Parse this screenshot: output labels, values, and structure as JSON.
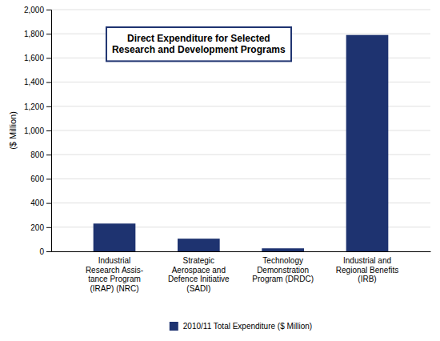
{
  "chart_data": {
    "type": "bar",
    "title": "Direct Expenditure for Selected\nResearch and Development Programs",
    "y_label": "($ Million)",
    "categories": [
      "Industrial\nResearch Assis-\ntance Program\n(IRAP) (NRC)",
      "Strategic\nAerospace and\nDefence Initiative\n(SADI)",
      "Technology\nDemonstration\nProgram (DRDC)",
      "Industrial and\nRegional Benefits\n(IRB)"
    ],
    "series": [
      {
        "name": "2010/11 Total Expenditure ($ Million)",
        "color": "#1e3370",
        "values": [
          230,
          105,
          25,
          1790
        ]
      }
    ],
    "ylim": [
      0,
      2000
    ],
    "yticks": [
      0,
      200,
      400,
      600,
      800,
      {
        "value": 1000,
        "label": "1,000"
      },
      {
        "value": 1200,
        "label": "1,200"
      },
      {
        "value": 1400,
        "label": "1,400"
      },
      {
        "value": 1600,
        "label": "1,600"
      },
      {
        "value": 1800,
        "label": "1,800"
      },
      {
        "value": 2000,
        "label": "2,000"
      }
    ],
    "grid": true,
    "legend": "bottom"
  }
}
